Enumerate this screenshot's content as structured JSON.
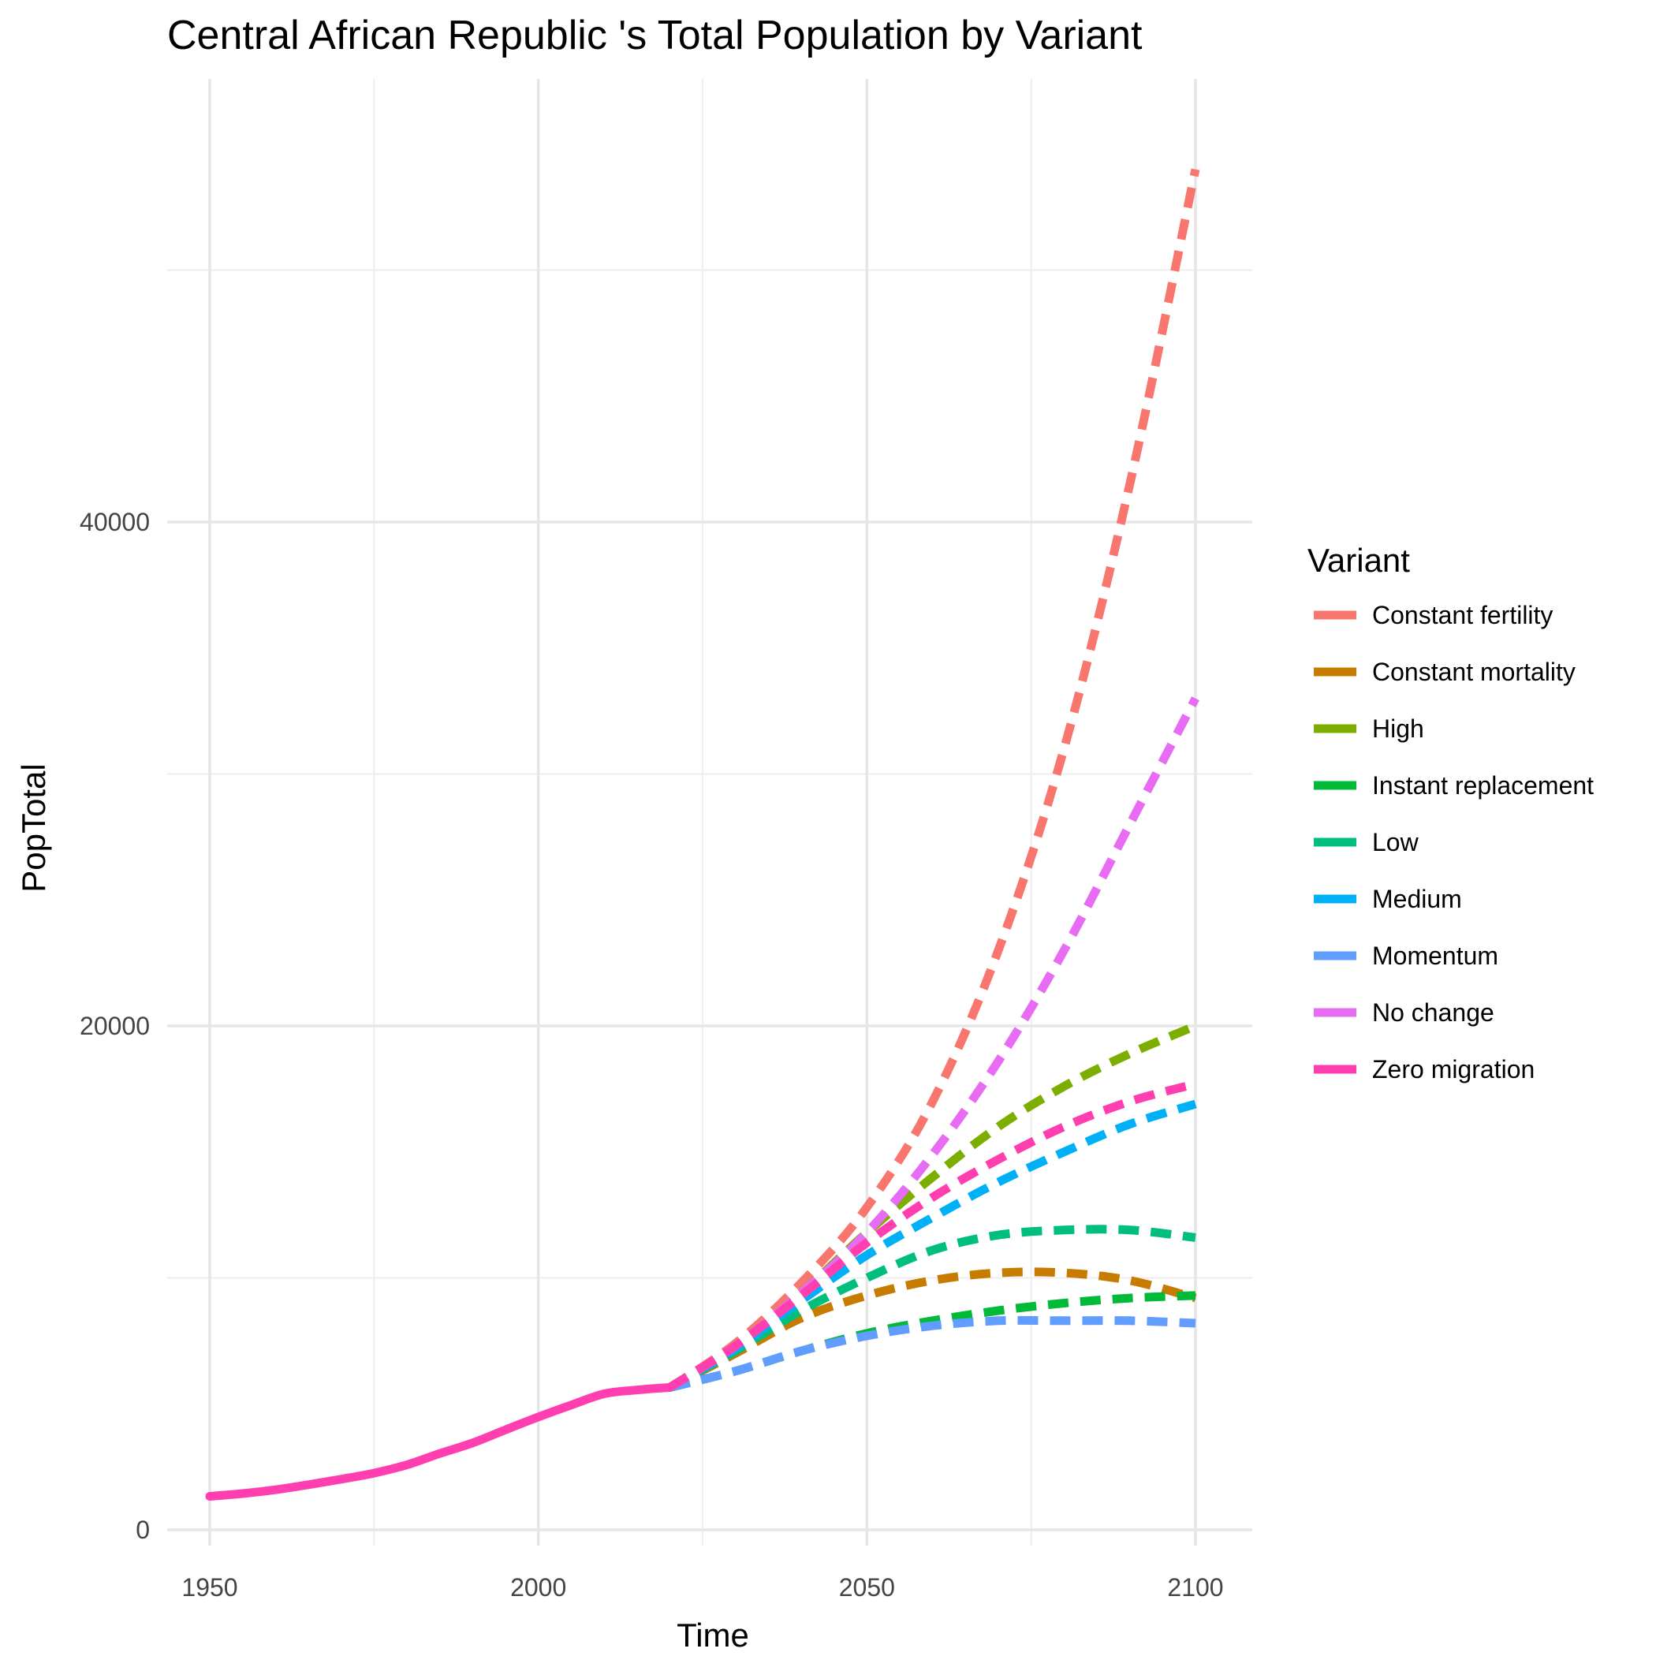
{
  "chart_data": {
    "type": "line",
    "title": "Central African Republic 's Total Population by Variant",
    "xlabel": "Time",
    "ylabel": "PopTotal",
    "xlim": [
      1950,
      2100
    ],
    "ylim": [
      0,
      55000
    ],
    "x_ticks": [
      "1950",
      "2000",
      "2050",
      "2100"
    ],
    "y_ticks": [
      "0",
      "20000",
      "40000"
    ],
    "x_tick_values": [
      1950,
      2000,
      2050,
      2100
    ],
    "y_tick_values": [
      0,
      20000,
      40000
    ],
    "grid": true,
    "legend_title": "Variant",
    "legend_position": "right",
    "historical": {
      "x": [
        1950,
        1955,
        1960,
        1965,
        1970,
        1975,
        1980,
        1985,
        1990,
        1995,
        2000,
        2005,
        2010,
        2015,
        2020
      ],
      "y": [
        1330,
        1440,
        1590,
        1790,
        2010,
        2250,
        2580,
        3030,
        3450,
        3970,
        4480,
        4950,
        5400,
        5550,
        5650
      ],
      "color": "#FF3FB0"
    },
    "series": [
      {
        "name": "Constant fertility",
        "color": "#F8766D",
        "x": [
          2020,
          2030,
          2040,
          2050,
          2060,
          2070,
          2080,
          2090,
          2100
        ],
        "y": [
          5650,
          7400,
          9800,
          12800,
          17000,
          23000,
          31000,
          41500,
          54000
        ]
      },
      {
        "name": "Constant mortality",
        "color": "#C77C00",
        "x": [
          2020,
          2030,
          2040,
          2050,
          2060,
          2070,
          2080,
          2090,
          2100
        ],
        "y": [
          5650,
          7000,
          8400,
          9300,
          9900,
          10200,
          10200,
          9900,
          9200
        ]
      },
      {
        "name": "High",
        "color": "#7CAE00",
        "x": [
          2020,
          2030,
          2040,
          2050,
          2060,
          2070,
          2080,
          2090,
          2100
        ],
        "y": [
          5650,
          7300,
          9400,
          11800,
          14000,
          16000,
          17600,
          18900,
          20000
        ]
      },
      {
        "name": "Instant replacement",
        "color": "#00BA38",
        "x": [
          2020,
          2030,
          2040,
          2050,
          2060,
          2070,
          2080,
          2090,
          2100
        ],
        "y": [
          5650,
          6300,
          7100,
          7800,
          8300,
          8700,
          9000,
          9200,
          9300
        ]
      },
      {
        "name": "Low",
        "color": "#00BF7D",
        "x": [
          2020,
          2030,
          2040,
          2050,
          2060,
          2070,
          2080,
          2090,
          2100
        ],
        "y": [
          5650,
          7100,
          8700,
          10000,
          11100,
          11700,
          11900,
          11900,
          11600
        ]
      },
      {
        "name": "Medium",
        "color": "#00B0F6",
        "x": [
          2020,
          2030,
          2040,
          2050,
          2060,
          2070,
          2080,
          2090,
          2100
        ],
        "y": [
          5650,
          7200,
          9100,
          10900,
          12400,
          13800,
          15000,
          16100,
          16900
        ]
      },
      {
        "name": "Momentum",
        "color": "#619CFF",
        "x": [
          2020,
          2030,
          2040,
          2050,
          2060,
          2070,
          2080,
          2090,
          2100
        ],
        "y": [
          5650,
          6300,
          7100,
          7700,
          8100,
          8300,
          8300,
          8300,
          8200
        ]
      },
      {
        "name": "No change",
        "color": "#E76BF3",
        "x": [
          2020,
          2030,
          2040,
          2050,
          2060,
          2070,
          2080,
          2090,
          2100
        ],
        "y": [
          5650,
          7300,
          9400,
          11800,
          14900,
          18600,
          23000,
          28000,
          33000
        ]
      },
      {
        "name": "Zero migration",
        "color": "#FF3FB0",
        "x": [
          2020,
          2030,
          2040,
          2050,
          2060,
          2070,
          2080,
          2090,
          2100
        ],
        "y": [
          5650,
          7300,
          9300,
          11400,
          13200,
          14700,
          16000,
          17000,
          17700
        ]
      }
    ]
  }
}
